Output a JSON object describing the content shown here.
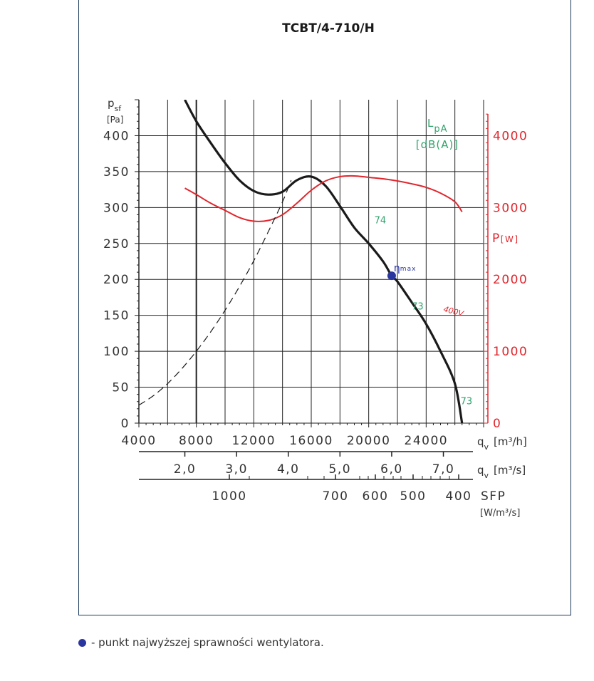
{
  "chart_data": {
    "type": "line",
    "title": "TCBT/4-710/H",
    "x_range": [
      4000,
      28000
    ],
    "y_range": [
      0,
      450
    ],
    "y2_range": [
      0,
      4500
    ],
    "x_ticks": [
      4000,
      8000,
      12000,
      16000,
      20000,
      24000
    ],
    "y_ticks": [
      0,
      50,
      100,
      150,
      200,
      250,
      300,
      350,
      400
    ],
    "y2_ticks": [
      0,
      1000,
      2000,
      3000,
      4000
    ],
    "x_label": "q",
    "x_label_sub": "v",
    "x_unit": "[m³/h]",
    "y_label": "p",
    "y_label_sub": "sf",
    "y_unit": "[Pa]",
    "y2_label": "P",
    "y2_unit": "[W]",
    "lpa_label": "L",
    "lpa_label_sub": "pA",
    "lpa_unit": "[dB(A)]",
    "q_m3s_label": "q",
    "q_m3s_sub": "v",
    "q_m3s_unit": "[m³/s]",
    "q_m3s_ticks": [
      {
        "label": "2,0",
        "value": 2.0
      },
      {
        "label": "3,0",
        "value": 3.0
      },
      {
        "label": "4,0",
        "value": 4.0
      },
      {
        "label": "5,0",
        "value": 5.0
      },
      {
        "label": "6,0",
        "value": 6.0
      },
      {
        "label": "7,0",
        "value": 7.0
      }
    ],
    "sfp_label": "SFP",
    "sfp_unit": "[W/m³/s]",
    "sfp_ticks": [
      {
        "label": "1000",
        "value": 1000
      },
      {
        "label": "700",
        "value": 700
      },
      {
        "label": "600",
        "value": 600
      },
      {
        "label": "500",
        "value": 500
      },
      {
        "label": "400",
        "value": 400
      }
    ],
    "series": [
      {
        "key": "pressure",
        "axis": "left",
        "color": "#1a1a1a",
        "x": [
          7200,
          8000,
          9000,
          10000,
          11000,
          12000,
          13000,
          14000,
          15000,
          16000,
          17000,
          18000,
          19000,
          20000,
          21000,
          21600,
          22000,
          23000,
          24000,
          25000,
          26000,
          26500
        ],
        "y": [
          450,
          420,
          390,
          362,
          338,
          323,
          318,
          322,
          338,
          343,
          330,
          302,
          272,
          250,
          225,
          205,
          197,
          168,
          138,
          100,
          55,
          0
        ]
      },
      {
        "key": "power",
        "axis": "right",
        "name": "400V",
        "color": "#e0262d",
        "x": [
          7200,
          8000,
          9000,
          10000,
          11000,
          12000,
          13000,
          14000,
          15000,
          16000,
          17000,
          18000,
          19000,
          20000,
          21000,
          22000,
          23000,
          24000,
          25000,
          26000,
          26500
        ],
        "y": [
          3270,
          3180,
          3060,
          2960,
          2860,
          2810,
          2820,
          2900,
          3060,
          3240,
          3370,
          3430,
          3440,
          3420,
          3400,
          3370,
          3330,
          3280,
          3200,
          3080,
          2940
        ]
      },
      {
        "key": "system",
        "axis": "left",
        "dashed": true,
        "color": "#1a1a1a",
        "x": [
          4000,
          5000,
          6000,
          7000,
          8000,
          9000,
          10000,
          11000,
          12000,
          13000,
          14000,
          14600
        ],
        "y": [
          25,
          38,
          55,
          76,
          100,
          127,
          157,
          190,
          226,
          266,
          308,
          338
        ]
      }
    ],
    "max_efficiency_point": {
      "x": 21600,
      "y": 205,
      "label": "η",
      "label_sub": "max"
    },
    "noise_labels": [
      {
        "text": "74",
        "x": 20000,
        "y": 290
      },
      {
        "text": "73",
        "x": 22600,
        "y": 170
      },
      {
        "text": "73",
        "x": 26000,
        "y": 38
      }
    ],
    "power_curve_label": {
      "text": "400V"
    }
  },
  "legend": {
    "text": "- punkt najwyższej sprawności wentylatora."
  }
}
